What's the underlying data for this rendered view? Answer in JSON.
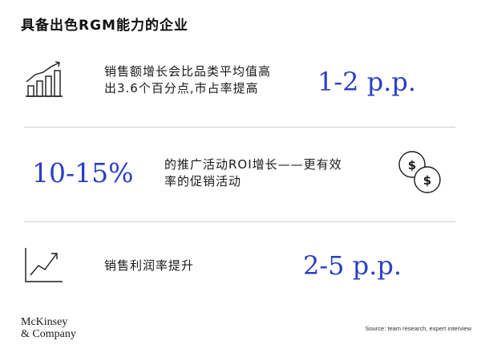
{
  "title": "具备出色RGM能力的企业",
  "rows": [
    {
      "icon": "bar-chart-growth-icon",
      "description_line1": "销售额增长会比品类平均值高",
      "description_line2": "出3.6个百分点,市占率提高",
      "metric": "1-2 p.p."
    },
    {
      "icon": "dollar-coins-icon",
      "metric": "10-15%",
      "description_line1": "的推广活动ROI增长——更有效",
      "description_line2": "率的促销活动"
    },
    {
      "icon": "line-chart-growth-icon",
      "description_line1": "销售利润率提升",
      "metric": "2-5 p.p."
    }
  ],
  "footer": {
    "logo_line1": "McKinsey",
    "logo_line2": "& Company",
    "source": "Source: team research, expert interview"
  },
  "colors": {
    "metric": "#2a3fc4",
    "icon_stroke": "#1a1a1a",
    "divider": "#cfcfcf"
  }
}
